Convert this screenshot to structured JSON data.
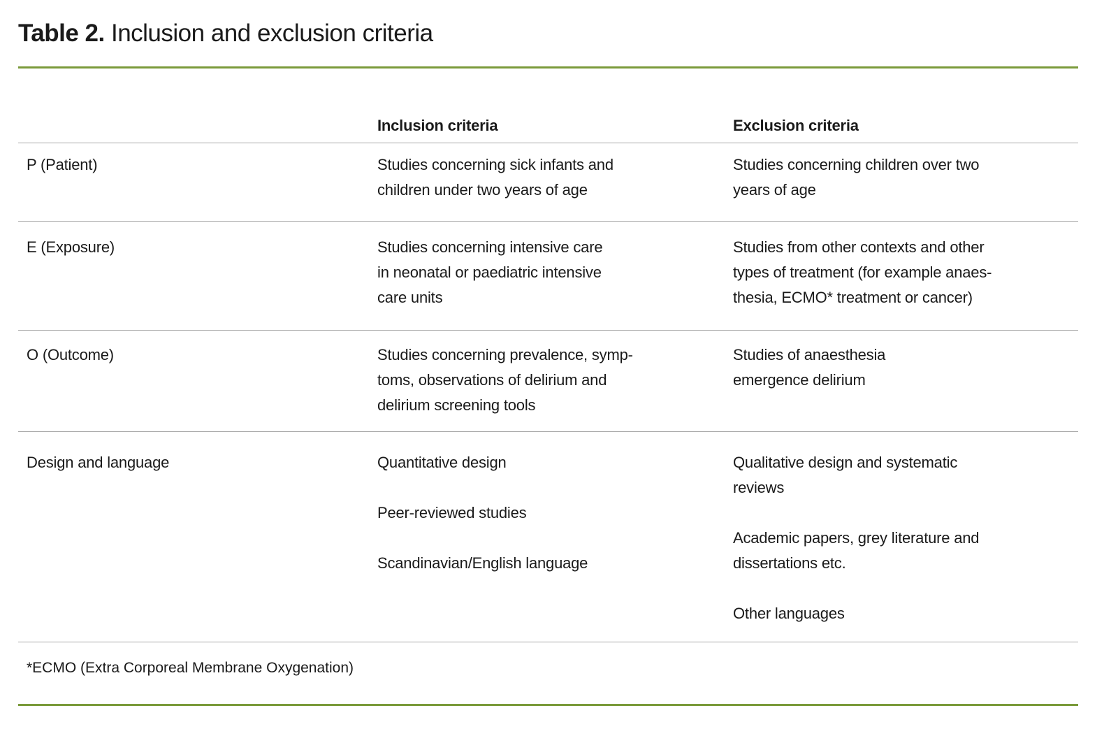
{
  "title": {
    "label": "Table 2.",
    "text": "Inclusion and exclusion criteria"
  },
  "colors": {
    "accent_rule": "#7a9a3a",
    "row_rule": "#a8a8a8"
  },
  "table": {
    "headers": [
      "",
      "Inclusion criteria",
      "Exclusion criteria"
    ],
    "rows": [
      {
        "label": "P (Patient)",
        "inclusion": [
          [
            "Studies concerning sick infants and",
            "children under two years of age"
          ]
        ],
        "exclusion": [
          [
            "Studies concerning children over two",
            "years of age"
          ]
        ]
      },
      {
        "label": "E (Exposure)",
        "inclusion": [
          [
            "Studies concerning intensive care",
            "in neonatal or paediatric intensive",
            "care units"
          ]
        ],
        "exclusion": [
          [
            "Studies from other contexts and other",
            "types of treatment (for example anaes-",
            "thesia, ECMO* treatment or cancer)"
          ]
        ]
      },
      {
        "label": "O (Outcome)",
        "inclusion": [
          [
            "Studies concerning prevalence, symp-",
            "toms, observations of delirium and",
            "delirium screening tools"
          ]
        ],
        "exclusion": [
          [
            "Studies of anaesthesia",
            "emergence delirium"
          ]
        ]
      },
      {
        "label": "Design and language",
        "inclusion": [
          [
            "Quantitative design"
          ],
          [
            "Peer-reviewed studies"
          ],
          [
            "Scandinavian/English language"
          ]
        ],
        "exclusion": [
          [
            "Qualitative design and systematic",
            "reviews"
          ],
          [
            "Academic papers, grey literature and",
            "dissertations etc."
          ],
          [
            "Other languages"
          ]
        ]
      }
    ]
  },
  "footnote": "*ECMO (Extra Corporeal Membrane Oxygenation)"
}
